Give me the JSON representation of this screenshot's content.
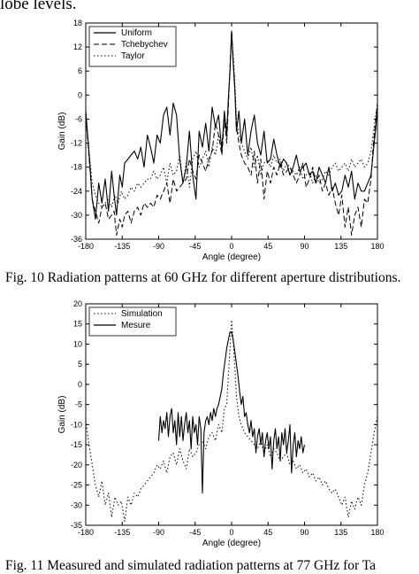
{
  "page": {
    "top_text": "lobe levels.",
    "caption1": "Fig. 10  Radiation patterns at 60 GHz for different aperture distributions.",
    "caption2": "Fig. 11 Measured and simulated radiation patterns at 77 GHz for Ta"
  },
  "chart_data": [
    {
      "type": "line",
      "title": "",
      "xlabel": "Angle (degree)",
      "ylabel": "Gain (dB)",
      "xlim": [
        -180,
        180
      ],
      "ylim": [
        -36,
        18
      ],
      "xticks": [
        -180,
        -135,
        -90,
        -45,
        0,
        45,
        90,
        135,
        180
      ],
      "yticks": [
        18,
        12,
        6,
        0,
        -6,
        -12,
        -18,
        -24,
        -30,
        -36
      ],
      "grid": false,
      "legend_position": "top-left",
      "series": [
        {
          "name": "Uniform",
          "style": "solid",
          "x": [
            -180,
            -178,
            -175,
            -172,
            -168,
            -164,
            -160,
            -156,
            -152,
            -148,
            -145,
            -142,
            -138,
            -135,
            -132,
            -128,
            -124,
            -120,
            -116,
            -112,
            -108,
            -104,
            -100,
            -96,
            -92,
            -88,
            -84,
            -80,
            -76,
            -72,
            -68,
            -64,
            -60,
            -56,
            -52,
            -48,
            -44,
            -40,
            -36,
            -32,
            -28,
            -24,
            -20,
            -16,
            -12,
            -9,
            -6,
            -4,
            -2,
            0,
            2,
            4,
            6,
            9,
            12,
            16,
            20,
            24,
            28,
            32,
            36,
            40,
            44,
            48,
            52,
            56,
            60,
            64,
            68,
            72,
            76,
            80,
            84,
            88,
            92,
            96,
            100,
            104,
            108,
            112,
            116,
            120,
            124,
            128,
            132,
            136,
            140,
            144,
            148,
            152,
            156,
            160,
            164,
            168,
            172,
            175,
            178,
            180
          ],
          "y": [
            -4,
            -9,
            -17,
            -26,
            -31,
            -22,
            -27,
            -21,
            -29,
            -19,
            -25,
            -30,
            -20,
            -23,
            -17,
            -16,
            -15,
            -14,
            -16,
            -13,
            -18,
            -10,
            -13,
            -17,
            -10,
            -12,
            -5,
            -3,
            -10,
            -2,
            -5,
            -16,
            -22,
            -18,
            -9,
            -20,
            -26,
            -9,
            -13,
            -7,
            -14,
            -3,
            -8,
            -5,
            -14,
            -4,
            -10,
            -1,
            6,
            16,
            8,
            1,
            -9,
            -4,
            -12,
            -6,
            -15,
            -9,
            -5,
            -12,
            -15,
            -9,
            -17,
            -16,
            -11,
            -15,
            -18,
            -16,
            -17,
            -20,
            -18,
            -15,
            -19,
            -18,
            -17,
            -20,
            -19,
            -22,
            -18,
            -20,
            -22,
            -18,
            -24,
            -22,
            -25,
            -24,
            -20,
            -23,
            -19,
            -26,
            -22,
            -24,
            -24,
            -22,
            -20,
            -14,
            -8,
            -3
          ]
        },
        {
          "name": "Tchebychev",
          "style": "dashed",
          "x": [
            -180,
            -178,
            -175,
            -172,
            -168,
            -164,
            -160,
            -156,
            -152,
            -148,
            -145,
            -142,
            -138,
            -135,
            -132,
            -128,
            -124,
            -120,
            -116,
            -112,
            -108,
            -104,
            -100,
            -96,
            -92,
            -88,
            -84,
            -80,
            -76,
            -72,
            -68,
            -64,
            -60,
            -56,
            -52,
            -48,
            -44,
            -40,
            -36,
            -32,
            -28,
            -24,
            -20,
            -16,
            -12,
            -9,
            -6,
            -4,
            -2,
            0,
            2,
            4,
            6,
            9,
            12,
            16,
            20,
            24,
            28,
            32,
            36,
            40,
            44,
            48,
            52,
            56,
            60,
            64,
            68,
            72,
            76,
            80,
            84,
            88,
            92,
            96,
            100,
            104,
            108,
            112,
            116,
            120,
            124,
            128,
            132,
            136,
            140,
            144,
            148,
            152,
            156,
            160,
            164,
            168,
            172,
            175,
            178,
            180
          ],
          "y": [
            -4,
            -10,
            -18,
            -26,
            -29,
            -32,
            -28,
            -27,
            -31,
            -30,
            -29,
            -35,
            -31,
            -33,
            -30,
            -29,
            -32,
            -29,
            -28,
            -30,
            -27,
            -28,
            -27,
            -28,
            -25,
            -26,
            -24,
            -22,
            -27,
            -21,
            -24,
            -23,
            -22,
            -21,
            -16,
            -19,
            -21,
            -15,
            -17,
            -19,
            -16,
            -14,
            -7,
            -10,
            -15,
            -6,
            -12,
            -3,
            7,
            16,
            9,
            2,
            -8,
            -12,
            -15,
            -17,
            -18,
            -20,
            -14,
            -22,
            -16,
            -26,
            -19,
            -22,
            -18,
            -20,
            -17,
            -20,
            -19,
            -18,
            -20,
            -22,
            -20,
            -17,
            -23,
            -21,
            -18,
            -22,
            -20,
            -24,
            -22,
            -25,
            -23,
            -27,
            -30,
            -25,
            -33,
            -28,
            -35,
            -30,
            -28,
            -33,
            -26,
            -27,
            -21,
            -12,
            -6,
            -2
          ]
        },
        {
          "name": "Taylor",
          "style": "dotted",
          "x": [
            -180,
            -176,
            -172,
            -168,
            -164,
            -160,
            -156,
            -152,
            -148,
            -144,
            -140,
            -136,
            -132,
            -128,
            -124,
            -120,
            -116,
            -112,
            -108,
            -104,
            -100,
            -96,
            -92,
            -88,
            -84,
            -80,
            -76,
            -72,
            -68,
            -64,
            -60,
            -56,
            -52,
            -48,
            -44,
            -40,
            -36,
            -32,
            -28,
            -24,
            -20,
            -16,
            -12,
            -9,
            -6,
            -4,
            -2,
            0,
            2,
            4,
            6,
            9,
            12,
            16,
            20,
            24,
            28,
            32,
            36,
            40,
            44,
            48,
            52,
            56,
            60,
            64,
            68,
            72,
            76,
            80,
            84,
            88,
            92,
            96,
            100,
            104,
            108,
            112,
            116,
            120,
            124,
            128,
            132,
            136,
            140,
            144,
            148,
            152,
            156,
            160,
            164,
            168,
            172,
            176,
            180
          ],
          "y": [
            -6,
            -14,
            -22,
            -25,
            -27,
            -28,
            -27,
            -26,
            -28,
            -25,
            -27,
            -24,
            -26,
            -25,
            -23,
            -24,
            -22,
            -23,
            -22,
            -21,
            -21,
            -19,
            -21,
            -20,
            -18,
            -22,
            -17,
            -20,
            -19,
            -15,
            -22,
            -17,
            -23,
            -16,
            -14,
            -18,
            -16,
            -14,
            -18,
            -13,
            -15,
            -10,
            -12,
            -6,
            -8,
            -2,
            7,
            16,
            10,
            3,
            -6,
            -10,
            -12,
            -14,
            -16,
            -13,
            -18,
            -15,
            -20,
            -17,
            -16,
            -18,
            -15,
            -17,
            -16,
            -19,
            -17,
            -18,
            -19,
            -20,
            -18,
            -21,
            -20,
            -19,
            -22,
            -20,
            -22,
            -21,
            -19,
            -20,
            -18,
            -17,
            -19,
            -18,
            -17,
            -19,
            -16,
            -18,
            -17,
            -16,
            -18,
            -17,
            -14,
            -8,
            -2
          ]
        }
      ]
    },
    {
      "type": "line",
      "title": "",
      "xlabel": "Angle (degree)",
      "ylabel": "Gain (dB)",
      "xlim": [
        -180,
        180
      ],
      "ylim": [
        -35,
        20
      ],
      "xticks": [
        -180,
        -135,
        -90,
        -45,
        0,
        45,
        90,
        135,
        180
      ],
      "yticks": [
        20,
        15,
        10,
        5,
        0,
        -5,
        -10,
        -15,
        -20,
        -25,
        -30,
        -35
      ],
      "grid": false,
      "legend_position": "top-left",
      "series": [
        {
          "name": "Simulation",
          "style": "dotted",
          "x": [
            -180,
            -176,
            -172,
            -168,
            -164,
            -160,
            -156,
            -152,
            -148,
            -144,
            -140,
            -136,
            -132,
            -128,
            -124,
            -120,
            -116,
            -112,
            -108,
            -104,
            -100,
            -96,
            -92,
            -88,
            -84,
            -80,
            -76,
            -72,
            -68,
            -64,
            -60,
            -56,
            -52,
            -48,
            -44,
            -40,
            -36,
            -32,
            -28,
            -24,
            -20,
            -16,
            -12,
            -9,
            -6,
            -4,
            -2,
            0,
            2,
            4,
            6,
            9,
            12,
            16,
            20,
            24,
            28,
            32,
            36,
            40,
            44,
            48,
            52,
            56,
            60,
            64,
            68,
            72,
            76,
            80,
            84,
            88,
            92,
            96,
            100,
            104,
            108,
            112,
            116,
            120,
            124,
            128,
            132,
            136,
            140,
            144,
            148,
            152,
            156,
            160,
            164,
            168,
            172,
            176,
            180
          ],
          "y": [
            -9,
            -15,
            -20,
            -25,
            -28,
            -24,
            -30,
            -27,
            -33,
            -28,
            -30,
            -29,
            -34,
            -28,
            -30,
            -27,
            -28,
            -26,
            -25,
            -24,
            -23,
            -22,
            -20,
            -21,
            -19,
            -22,
            -18,
            -17,
            -20,
            -16,
            -19,
            -21,
            -16,
            -18,
            -17,
            -15,
            -14,
            -16,
            -13,
            -12,
            -14,
            -10,
            -12,
            -6,
            -5,
            2,
            9,
            16,
            11,
            4,
            -3,
            -8,
            -10,
            -12,
            -13,
            -14,
            -15,
            -16,
            -14,
            -17,
            -15,
            -18,
            -16,
            -17,
            -19,
            -18,
            -17,
            -20,
            -19,
            -21,
            -20,
            -22,
            -21,
            -23,
            -22,
            -24,
            -23,
            -25,
            -24,
            -26,
            -27,
            -26,
            -28,
            -30,
            -28,
            -33,
            -29,
            -31,
            -28,
            -30,
            -25,
            -22,
            -17,
            -12,
            -8
          ]
        },
        {
          "name": "Mesure",
          "style": "solid",
          "x": [
            -90,
            -88,
            -86,
            -84,
            -82,
            -80,
            -78,
            -76,
            -74,
            -72,
            -70,
            -68,
            -66,
            -64,
            -62,
            -60,
            -58,
            -56,
            -54,
            -52,
            -50,
            -48,
            -46,
            -44,
            -42,
            -40,
            -38,
            -36,
            -34,
            -32,
            -30,
            -28,
            -26,
            -24,
            -22,
            -20,
            -18,
            -16,
            -14,
            -12,
            -10,
            -8,
            -6,
            -4,
            -2,
            0,
            2,
            4,
            6,
            8,
            10,
            12,
            14,
            16,
            18,
            20,
            22,
            24,
            26,
            28,
            30,
            32,
            34,
            36,
            38,
            40,
            42,
            44,
            46,
            48,
            50,
            52,
            54,
            56,
            58,
            60,
            62,
            64,
            66,
            68,
            70,
            72,
            74,
            76,
            78,
            80,
            82,
            84,
            86,
            88,
            90
          ],
          "y": [
            -14,
            -8,
            -12,
            -9,
            -11,
            -7,
            -13,
            -8,
            -6,
            -12,
            -9,
            -15,
            -7,
            -13,
            -8,
            -14,
            -10,
            -7,
            -12,
            -9,
            -16,
            -8,
            -12,
            -10,
            -15,
            -8,
            -11,
            -27,
            -12,
            -9,
            -8,
            -10,
            -7,
            -9,
            -6,
            -8,
            -6,
            -5,
            -3,
            -1,
            3,
            6,
            9,
            11,
            13,
            13,
            11,
            8,
            5,
            2,
            -2,
            -5,
            -3,
            -8,
            -7,
            -10,
            -12,
            -9,
            -13,
            -11,
            -17,
            -13,
            -11,
            -15,
            -12,
            -18,
            -14,
            -12,
            -16,
            -13,
            -21,
            -14,
            -11,
            -16,
            -13,
            -19,
            -12,
            -15,
            -11,
            -17,
            -14,
            -10,
            -22,
            -15,
            -12,
            -18,
            -14,
            -16,
            -13,
            -17,
            -15
          ]
        }
      ]
    }
  ]
}
